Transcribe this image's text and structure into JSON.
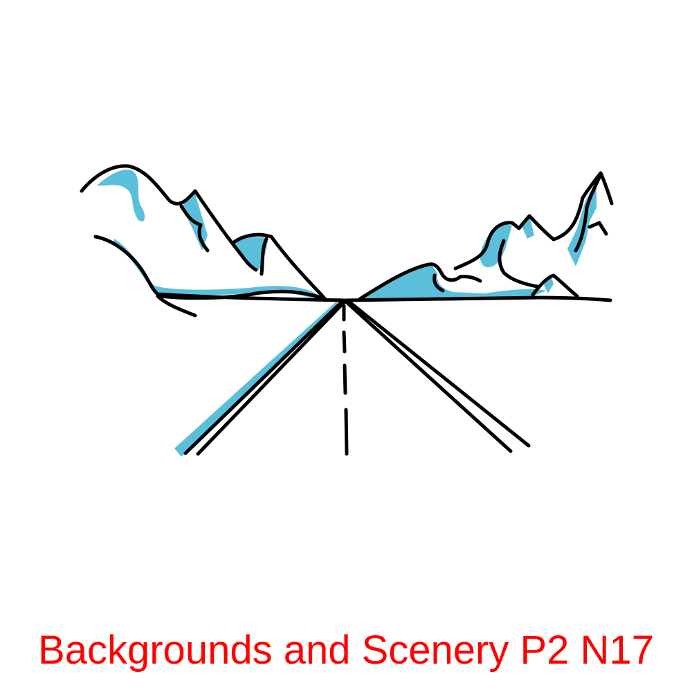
{
  "caption": {
    "text": "Backgrounds and Scenery P2 N17",
    "color": "#ff0000"
  },
  "illustration": {
    "subject": "mountain-road-icon",
    "fill_color": "#5bbfdc",
    "stroke_color": "#000000"
  }
}
